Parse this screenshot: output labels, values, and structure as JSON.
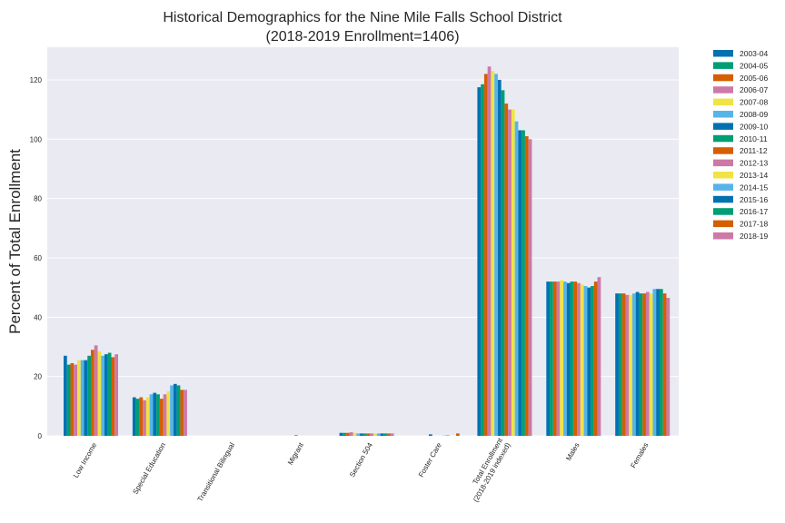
{
  "chart_data": {
    "type": "bar",
    "title": "Historical Demographics for the Nine Mile Falls School District",
    "subtitle": "(2018-2019 Enrollment=1406)",
    "xlabel": "",
    "ylabel": "Percent of Total Enrollment",
    "ylim": [
      0,
      131
    ],
    "yticks": [
      0,
      20,
      40,
      60,
      80,
      100,
      120
    ],
    "grid": true,
    "legend_position": "right-outside",
    "categories": [
      "Low Income",
      "Special Education",
      "Transitional Bilingual",
      "Migrant",
      "Section 504",
      "Foster Care",
      "Total Enrollment\n(2018-2019 indexed)",
      "Males",
      "Females"
    ],
    "colors": [
      "#0072B2",
      "#009E73",
      "#D55E00",
      "#CC79A7",
      "#F0E442",
      "#56B4E9"
    ],
    "series": [
      {
        "name": "2003-04",
        "values": [
          27.0,
          13.0,
          0,
          0,
          1.0,
          0,
          117.5,
          52.0,
          48.0
        ]
      },
      {
        "name": "2004-05",
        "values": [
          24.0,
          12.5,
          0,
          0,
          1.0,
          0,
          118.5,
          52.0,
          48.0
        ]
      },
      {
        "name": "2005-06",
        "values": [
          24.5,
          13.0,
          0,
          0,
          1.0,
          0,
          122.0,
          52.0,
          48.0
        ]
      },
      {
        "name": "2006-07",
        "values": [
          24.0,
          12.0,
          0,
          0,
          1.2,
          0,
          124.5,
          52.0,
          47.5
        ]
      },
      {
        "name": "2007-08",
        "values": [
          25.5,
          13.0,
          0,
          0,
          1.0,
          0,
          123.0,
          52.5,
          47.5
        ]
      },
      {
        "name": "2008-09",
        "values": [
          25.5,
          14.0,
          0,
          0,
          0.8,
          0,
          122.0,
          52.0,
          48.0
        ]
      },
      {
        "name": "2009-10",
        "values": [
          25.5,
          14.5,
          0,
          0,
          0.8,
          0.5,
          120.0,
          51.5,
          48.5
        ]
      },
      {
        "name": "2010-11",
        "values": [
          27.0,
          14.0,
          0,
          0.2,
          0.8,
          0,
          116.5,
          52.0,
          48.0
        ]
      },
      {
        "name": "2011-12",
        "values": [
          29.0,
          12.5,
          0,
          0,
          0.8,
          0,
          112.0,
          52.0,
          48.0
        ]
      },
      {
        "name": "2012-13",
        "values": [
          30.5,
          14.0,
          0,
          0,
          0.8,
          0,
          110.0,
          51.5,
          48.5
        ]
      },
      {
        "name": "2013-14",
        "values": [
          28.5,
          15.0,
          0,
          0,
          0.8,
          0.2,
          110.0,
          51.0,
          48.0
        ]
      },
      {
        "name": "2014-15",
        "values": [
          27.0,
          17.0,
          0,
          0,
          0.8,
          0.2,
          106.0,
          50.5,
          49.5
        ]
      },
      {
        "name": "2015-16",
        "values": [
          27.5,
          17.5,
          0,
          0,
          0.8,
          0,
          103.0,
          50.0,
          49.5
        ]
      },
      {
        "name": "2016-17",
        "values": [
          28.0,
          17.0,
          0,
          0,
          0.8,
          0,
          103.0,
          50.5,
          49.5
        ]
      },
      {
        "name": "2017-18",
        "values": [
          26.5,
          15.5,
          0,
          0,
          0.8,
          0.8,
          101.0,
          52.0,
          48.0
        ]
      },
      {
        "name": "2018-19",
        "values": [
          27.5,
          15.5,
          0,
          0,
          0.8,
          0,
          100.0,
          53.5,
          46.5
        ]
      }
    ]
  }
}
